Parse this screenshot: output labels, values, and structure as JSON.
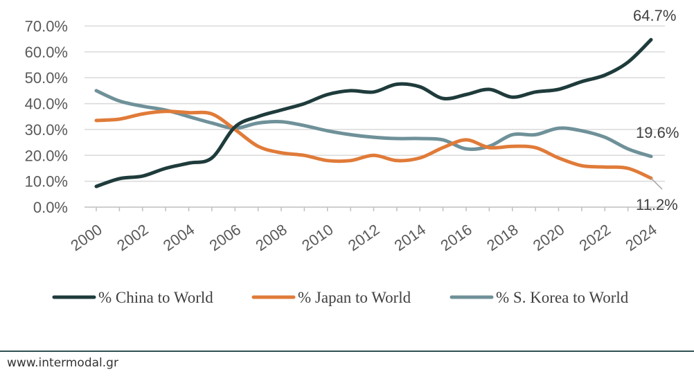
{
  "chart_data": {
    "type": "line",
    "title": "",
    "xlabel": "",
    "ylabel": "",
    "x": [
      2000,
      2001,
      2002,
      2003,
      2004,
      2005,
      2006,
      2007,
      2008,
      2009,
      2010,
      2011,
      2012,
      2013,
      2014,
      2015,
      2016,
      2017,
      2018,
      2019,
      2020,
      2021,
      2022,
      2023,
      2024
    ],
    "x_tick_labels": [
      "2000",
      "2002",
      "2004",
      "2006",
      "2008",
      "2010",
      "2012",
      "2014",
      "2016",
      "2018",
      "2020",
      "2022",
      "2024"
    ],
    "y_tick_labels": [
      "0.0%",
      "10.0%",
      "20.0%",
      "30.0%",
      "40.0%",
      "50.0%",
      "60.0%",
      "70.0%"
    ],
    "ylim": [
      0,
      70
    ],
    "grid": true,
    "legend_position": "bottom",
    "series": [
      {
        "name": "% China to World",
        "color": "#1f3b3b",
        "values": [
          8,
          11,
          12,
          15,
          17,
          19,
          31,
          35,
          37.5,
          40,
          43.5,
          45,
          44.5,
          47.5,
          46.5,
          42,
          43.5,
          45.5,
          42.5,
          44.5,
          45.5,
          48.5,
          51,
          56,
          64.7
        ]
      },
      {
        "name": "% Japan to World",
        "color": "#e07b39",
        "values": [
          33.5,
          34,
          36,
          37,
          36.5,
          36,
          30,
          23.5,
          21,
          20,
          18,
          18,
          20,
          18,
          19,
          23,
          26,
          23,
          23.5,
          23,
          19,
          16,
          15.5,
          15,
          11.2
        ]
      },
      {
        "name": "% S. Korea to World",
        "color": "#6f9199",
        "values": [
          45,
          41,
          39,
          37.5,
          35,
          32.5,
          30.5,
          32.5,
          33,
          31.5,
          29.5,
          28,
          27,
          26.5,
          26.5,
          26,
          22.5,
          23.5,
          28,
          28,
          30.5,
          29.5,
          27,
          22.5,
          19.6
        ]
      }
    ],
    "annotations": [
      "64.7%",
      "19.6%",
      "11.2%"
    ]
  },
  "footer": {
    "source": "www.intermodal.gr"
  }
}
